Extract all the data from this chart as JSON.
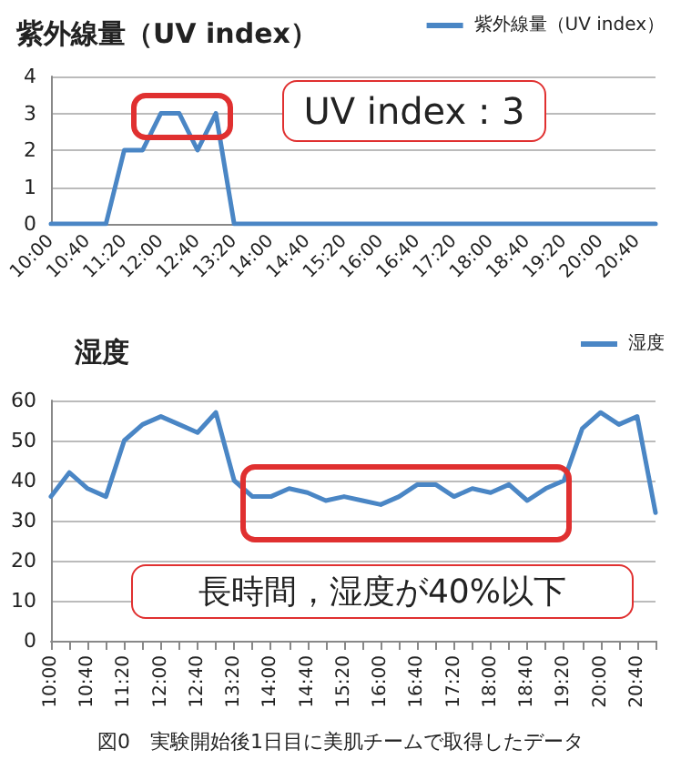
{
  "chart_data": [
    {
      "type": "line",
      "title": "紫外線量（UV index）",
      "categories": [
        "10:00",
        null,
        "10:40",
        null,
        "11:20",
        null,
        "12:00",
        null,
        "12:40",
        null,
        "13:20",
        null,
        "14:00",
        null,
        "14:40",
        null,
        "15:20",
        null,
        "16:00",
        null,
        "16:40",
        null,
        "17:20",
        null,
        "18:00",
        null,
        "18:40",
        null,
        "19:20",
        null,
        "20:00",
        null,
        "20:40",
        null
      ],
      "series": [
        {
          "name": "紫外線量（UV index）",
          "color": "#4a86c5",
          "values": [
            0,
            0,
            0,
            0,
            2,
            2,
            3,
            3,
            2,
            3,
            0,
            0,
            0,
            0,
            0,
            0,
            0,
            0,
            0,
            0,
            0,
            0,
            0,
            0,
            0,
            0,
            0,
            0,
            0,
            0,
            0,
            0,
            0,
            0
          ]
        }
      ],
      "ylim": [
        0,
        4
      ],
      "yticks": [
        0,
        1,
        2,
        3,
        4
      ],
      "grid": "y",
      "legend": "top right",
      "marker": "none",
      "line_style": "solid",
      "annotations": [
        "UV index : 3"
      ]
    },
    {
      "type": "line",
      "title": "湿度",
      "categories": [
        "10:00",
        null,
        "10:40",
        null,
        "11:20",
        null,
        "12:00",
        null,
        "12:40",
        null,
        "13:20",
        null,
        "14:00",
        null,
        "14:40",
        null,
        "15:20",
        null,
        "16:00",
        null,
        "16:40",
        null,
        "17:20",
        null,
        "18:00",
        null,
        "18:40",
        null,
        "19:20",
        null,
        "20:00",
        null,
        "20:40",
        null
      ],
      "series": [
        {
          "name": "湿度",
          "color": "#4a86c5",
          "values": [
            36,
            42,
            38,
            36,
            50,
            54,
            56,
            54,
            52,
            57,
            40,
            36,
            36,
            38,
            37,
            35,
            36,
            35,
            34,
            36,
            39,
            39,
            36,
            38,
            37,
            39,
            35,
            38,
            40,
            53,
            57,
            54,
            56,
            32
          ]
        }
      ],
      "ylim": [
        0,
        60
      ],
      "yticks": [
        0,
        10,
        20,
        30,
        40,
        50,
        60
      ],
      "grid": "y",
      "legend": "top right",
      "marker": "none",
      "line_style": "solid",
      "annotations": [
        "長時間，湿度が40%以下",
        "図0　実験開始後1日目に美肌チームで取得したデータ"
      ]
    }
  ]
}
